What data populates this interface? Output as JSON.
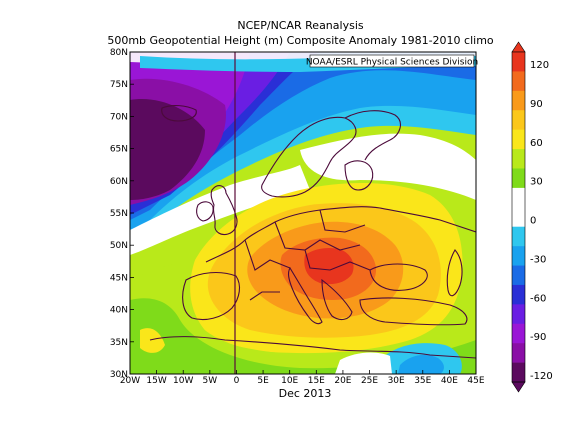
{
  "title": {
    "line1": "NCEP/NCAR Reanalysis",
    "line2": "500mb Geopotential Height (m) Composite Anomaly 1981-2010 climo"
  },
  "credit": "NOAA/ESRL Physical Sciences Division",
  "date_label": "Dec 2013",
  "map": {
    "lon_ticks": [
      "20W",
      "15W",
      "10W",
      "5W",
      "0",
      "5E",
      "10E",
      "15E",
      "20E",
      "25E",
      "30E",
      "35E",
      "40E",
      "45E"
    ],
    "lat_ticks": [
      "80N",
      "75N",
      "70N",
      "65N",
      "60N",
      "55N",
      "50N",
      "45N",
      "40N",
      "35N",
      "30N"
    ],
    "lon_range": [
      -20,
      45
    ],
    "lat_range": [
      30,
      80
    ]
  },
  "colorbar": {
    "ticks": [
      "120",
      "90",
      "60",
      "30",
      "0",
      "-30",
      "-60",
      "-90",
      "-120"
    ],
    "colors": [
      "#e8351e",
      "#f26a1d",
      "#f99a1a",
      "#fbc71a",
      "#fae61a",
      "#b9e91a",
      "#7fdb1a",
      "#ffffff",
      "#ffffff",
      "#2fc7ef",
      "#19a2ef",
      "#1a6be6",
      "#2a2fd6",
      "#6a1ee3",
      "#9a16d6",
      "#8a0fa6",
      "#5b0a5e"
    ]
  }
}
